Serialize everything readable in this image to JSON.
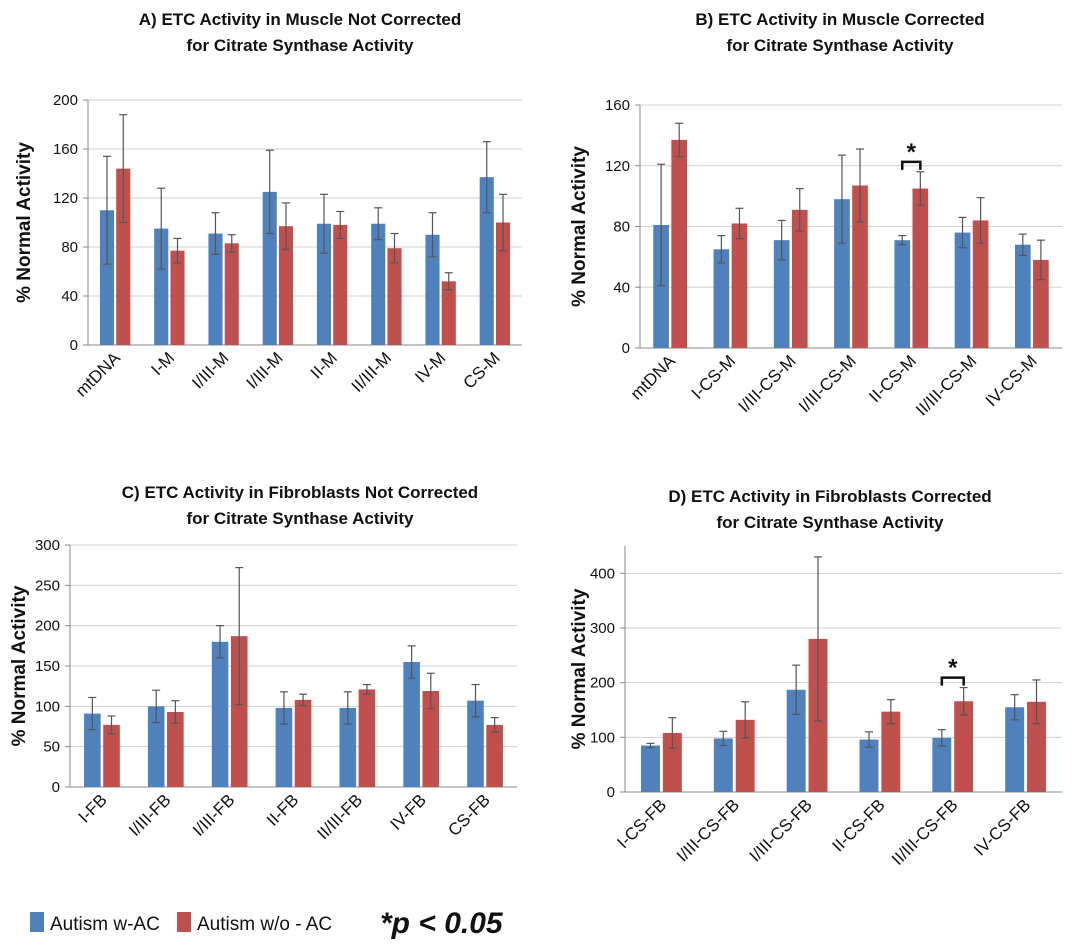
{
  "chart_data": [
    {
      "type": "bar",
      "title": [
        "A)    ETC Activity in Muscle Not Corrected",
        "for Citrate Synthase Activity"
      ],
      "y_label": "% Normal Activity",
      "categories": [
        "mtDNA",
        "I-M",
        "I/III-M",
        "I/III-M",
        "II-M",
        "II/III-M",
        "IV-M",
        "CS-M"
      ],
      "series": [
        {
          "values": [
            110,
            95,
            91,
            125,
            99,
            99,
            90,
            137
          ],
          "errors": [
            44,
            33,
            17,
            34,
            24,
            13,
            18,
            29
          ]
        },
        {
          "values": [
            144,
            77,
            83,
            97,
            98,
            79,
            52,
            100
          ],
          "errors": [
            44,
            10,
            7,
            19,
            11,
            12,
            7,
            23
          ]
        }
      ],
      "ylim": [
        0,
        200
      ],
      "yticks": [
        0,
        40,
        80,
        120,
        160,
        200
      ],
      "grid": true,
      "significance": []
    },
    {
      "type": "bar",
      "title": [
        "B) ETC Activity in Muscle Corrected",
        "for Citrate Synthase Activity"
      ],
      "y_label": "% Normal Activity",
      "categories": [
        "mtDNA",
        "I-CS-M",
        "I/III-CS-M",
        "I/III-CS-M",
        "II-CS-M",
        "II/III-CS-M",
        "IV-CS-M"
      ],
      "series": [
        {
          "values": [
            81,
            65,
            71,
            98,
            71,
            76,
            68
          ],
          "errors": [
            40,
            9,
            13,
            29,
            3,
            10,
            7
          ]
        },
        {
          "values": [
            137,
            82,
            91,
            107,
            105,
            84,
            58
          ],
          "errors": [
            11,
            10,
            14,
            24,
            11,
            15,
            13
          ]
        }
      ],
      "ylim": [
        0,
        160
      ],
      "yticks": [
        0,
        40,
        80,
        120,
        160
      ],
      "grid": true,
      "significance": [
        {
          "category": "II-CS-M",
          "label": "*"
        }
      ]
    },
    {
      "type": "bar",
      "title": [
        "C) ETC Activity in Fibroblasts Not Corrected",
        "for Citrate Synthase Activity"
      ],
      "y_label": "% Normal Activity",
      "categories": [
        "I-FB",
        "I/III-FB",
        "I/III-FB",
        "II-FB",
        "II/III-FB",
        "IV-FB",
        "CS-FB"
      ],
      "series": [
        {
          "values": [
            91,
            100,
            180,
            98,
            98,
            155,
            107
          ],
          "errors": [
            20,
            20,
            20,
            20,
            20,
            20,
            20
          ]
        },
        {
          "values": [
            77,
            93,
            187,
            108,
            121,
            119,
            77
          ],
          "errors": [
            11,
            14,
            85,
            7,
            6,
            22,
            9
          ]
        }
      ],
      "ylim": [
        0,
        300
      ],
      "yticks": [
        0,
        50,
        100,
        150,
        200,
        250,
        300
      ],
      "grid": true,
      "significance": []
    },
    {
      "type": "bar",
      "title": [
        "D) ETC Activity in Fibroblasts Corrected",
        "for Citrate Synthase Activity"
      ],
      "y_label": "% Normal Activity",
      "categories": [
        "I-CS-FB",
        "I/III-CS-FB",
        "I/III-CS-FB",
        "II-CS-FB",
        "II/III-CS-FB",
        "IV-CS-FB"
      ],
      "series": [
        {
          "values": [
            85,
            98,
            187,
            96,
            99,
            155
          ],
          "errors": [
            4,
            13,
            45,
            14,
            15,
            23
          ]
        },
        {
          "values": [
            108,
            132,
            280,
            147,
            166,
            165
          ],
          "errors": [
            28,
            33,
            150,
            22,
            25,
            40
          ]
        }
      ],
      "ylim": [
        0,
        450
      ],
      "yticks": [
        0,
        100,
        200,
        300,
        400
      ],
      "grid": true,
      "significance": [
        {
          "category": "II/III-CS-FB",
          "label": "*"
        }
      ]
    }
  ],
  "legend": [
    {
      "name": "Autism w-AC",
      "color": "#4f81bd"
    },
    {
      "name": "Autism w/o - AC",
      "color": "#c0504d"
    }
  ],
  "note": "*p < 0.05"
}
